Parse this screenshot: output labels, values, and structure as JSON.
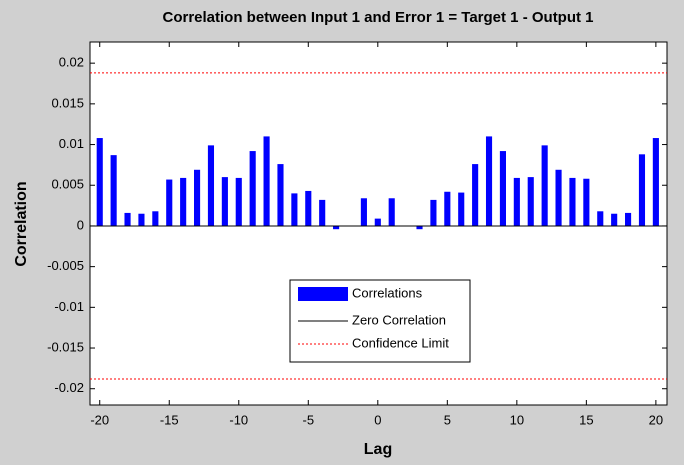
{
  "chart_data": {
    "type": "bar",
    "title": "Correlation between Input 1 and Error 1 = Target 1 - Output 1",
    "x_label": "Lag",
    "y_label": "Correlation",
    "x": [
      -20,
      -19,
      -18,
      -17,
      -16,
      -15,
      -14,
      -13,
      -12,
      -11,
      -10,
      -9,
      -8,
      -7,
      -6,
      -5,
      -4,
      -3,
      -2,
      -1,
      0,
      1,
      2,
      3,
      4,
      5,
      6,
      7,
      8,
      9,
      10,
      11,
      12,
      13,
      14,
      15,
      16,
      17,
      18,
      19,
      20
    ],
    "series": [
      {
        "name": "Correlations",
        "color": "#0000ff",
        "values": [
          0.0108,
          0.0087,
          0.0016,
          0.0015,
          0.0018,
          0.0057,
          0.0059,
          0.0069,
          0.0099,
          0.006,
          0.0059,
          0.0092,
          0.011,
          0.0076,
          0.004,
          0.0043,
          0.0032,
          -0.0004,
          0,
          0.0034,
          0.0009,
          0.0034,
          0,
          -0.0004,
          0.0032,
          0.0042,
          0.0041,
          0.0076,
          0.011,
          0.0092,
          0.0059,
          0.006,
          0.0099,
          0.0069,
          0.0059,
          0.0058,
          0.0018,
          0.0015,
          0.0016,
          0.0088,
          0.0108
        ]
      }
    ],
    "zero_line": {
      "name": "Zero Correlation",
      "color": "#000000",
      "value": 0
    },
    "confidence_limit": {
      "name": "Confidence Limit",
      "color": "#ff0000",
      "values": [
        0.0188,
        -0.0188
      ]
    },
    "xlim": [
      -20.7,
      20.8
    ],
    "ylim": [
      -0.022,
      0.0226
    ],
    "xticks": [
      -20,
      -15,
      -10,
      -5,
      0,
      5,
      10,
      15,
      20
    ],
    "yticks": [
      0.02,
      0.015,
      0.01,
      0.005,
      0,
      -0.005,
      -0.01,
      -0.015,
      -0.02
    ]
  }
}
